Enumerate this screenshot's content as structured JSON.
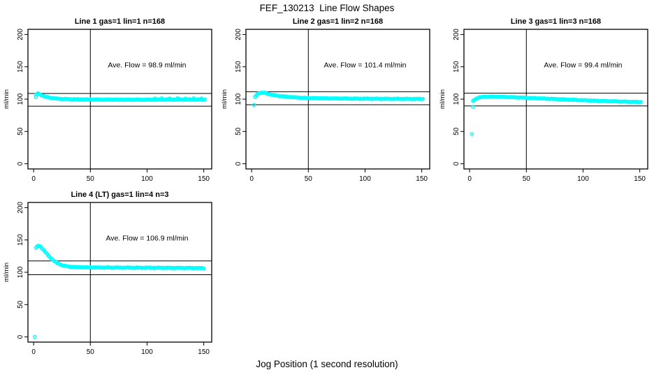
{
  "page": {
    "title": "FEF_130213  Line Flow Shapes",
    "xlabel": "Jog Position (1 second resolution)"
  },
  "chart_data": {
    "type": "scatter",
    "title": "FEF_130213  Line Flow Shapes",
    "xlabel": "Jog Position (1 second resolution)",
    "ylabel": "ml/min",
    "marker": {
      "shape": "open-circle",
      "color": "#00FFFF",
      "radius_px": 2.1
    },
    "axes": {
      "xticks": [
        0,
        50,
        100,
        150
      ],
      "yticks": [
        0,
        50,
        100,
        150,
        200
      ],
      "xlim": [
        0,
        155
      ],
      "ylim": [
        0,
        200
      ],
      "grid": "off",
      "legend": "none"
    },
    "layout": {
      "panels_per_row": 3,
      "box": {
        "l": 40,
        "r": 303,
        "t": 22,
        "b": 222
      },
      "x_range": [
        -5,
        157
      ],
      "y_range": [
        -8,
        208
      ],
      "annotation_pos": {
        "x": 100,
        "y": 149
      },
      "jitter": 0.4
    },
    "panels": [
      {
        "title": "Line 1 gas=1 lin=1 n=168",
        "n": 168,
        "ave_flow": 98.9,
        "annotation": "Ave. Flow =  98.9  ml/min",
        "vline_x": 50,
        "hlines": [
          108.8,
          89.0
        ],
        "series_keypoints": [
          [
            2,
            107
          ],
          [
            4,
            109
          ],
          [
            7,
            106
          ],
          [
            10,
            104
          ],
          [
            15,
            102
          ],
          [
            22,
            100.5
          ],
          [
            35,
            99.8
          ],
          [
            60,
            99.3
          ],
          [
            100,
            99.2
          ],
          [
            125,
            99.6
          ],
          [
            151,
            99.3
          ]
        ],
        "outliers": [
          [
            2,
            103
          ],
          [
            107,
            101
          ],
          [
            113,
            101.3
          ],
          [
            120,
            101
          ],
          [
            127,
            101.4
          ],
          [
            134,
            101
          ],
          [
            141,
            101.3
          ],
          [
            148,
            101
          ]
        ]
      },
      {
        "title": "Line 2 gas=1 lin=2 n=168",
        "n": 168,
        "ave_flow": 101.4,
        "annotation": "Ave. Flow =  101.4  ml/min",
        "vline_x": 50,
        "hlines": [
          111.5,
          91.3
        ],
        "series_keypoints": [
          [
            3,
            103
          ],
          [
            5,
            108
          ],
          [
            8,
            110
          ],
          [
            12,
            109.5
          ],
          [
            17,
            107
          ],
          [
            24,
            105
          ],
          [
            32,
            103.5
          ],
          [
            45,
            102
          ],
          [
            65,
            101.2
          ],
          [
            90,
            100.8
          ],
          [
            120,
            100.5
          ],
          [
            151,
            100.3
          ]
        ],
        "outliers": [
          [
            2,
            91
          ]
        ]
      },
      {
        "title": "Line 3 gas=1 lin=3 n=168",
        "n": 168,
        "ave_flow": 99.4,
        "annotation": "Ave. Flow =  99.4  ml/min",
        "vline_x": 50,
        "hlines": [
          109.3,
          89.5
        ],
        "series_keypoints": [
          [
            3,
            97
          ],
          [
            5,
            100
          ],
          [
            8,
            102.5
          ],
          [
            13,
            103.8
          ],
          [
            20,
            104
          ],
          [
            30,
            103.5
          ],
          [
            45,
            102.5
          ],
          [
            60,
            101.3
          ],
          [
            80,
            99.8
          ],
          [
            100,
            98.3
          ],
          [
            120,
            97
          ],
          [
            135,
            96.2
          ],
          [
            151,
            95.5
          ]
        ],
        "outliers": [
          [
            2,
            46
          ],
          [
            3,
            88
          ]
        ]
      },
      {
        "title": "Line 4 (LT) gas=1 lin=4 n=3",
        "n": 3,
        "ave_flow": 106.9,
        "annotation": "Ave. Flow =  106.9  ml/min",
        "vline_x": 50,
        "hlines": [
          117.6,
          96.2
        ],
        "series_keypoints": [
          [
            2,
            138
          ],
          [
            4,
            141
          ],
          [
            6,
            140
          ],
          [
            8,
            136
          ],
          [
            11,
            130
          ],
          [
            14,
            124
          ],
          [
            17,
            119
          ],
          [
            21,
            114
          ],
          [
            25,
            111
          ],
          [
            30,
            109
          ],
          [
            38,
            108
          ],
          [
            50,
            107.5
          ],
          [
            70,
            107.2
          ],
          [
            100,
            107
          ],
          [
            125,
            106.8
          ],
          [
            150,
            106.5
          ]
        ],
        "outliers": [
          [
            1,
            0
          ]
        ]
      }
    ]
  }
}
